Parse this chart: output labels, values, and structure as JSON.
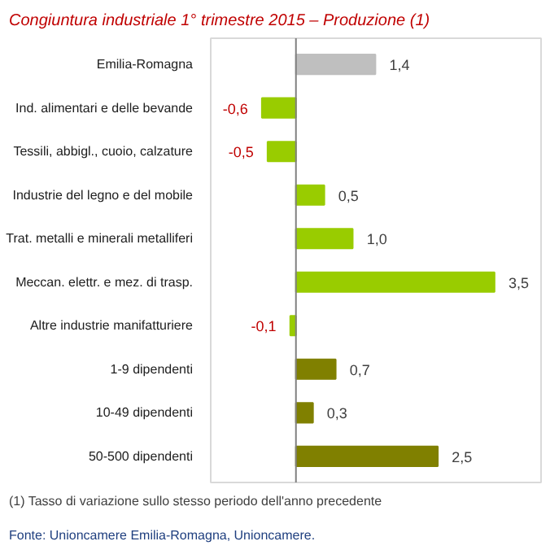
{
  "chart_data": {
    "type": "bar",
    "orientation": "horizontal",
    "title": "Congiuntura industriale 1° trimestre 2015 – Produzione (1)",
    "categories": [
      "Emilia-Romagna",
      "Ind. alimentari e delle bevande",
      "Tessili, abbigl., cuoio, calzature",
      "Industrie del legno e del mobile",
      "Trat. metalli e minerali metalliferi",
      "Meccan. elettr. e mez. di trasp.",
      "Altre industrie manifatturiere",
      "1-9 dipendenti",
      "10-49 dipendenti",
      "50-500 dipendenti"
    ],
    "values": [
      1.4,
      -0.6,
      -0.5,
      0.5,
      1.0,
      3.5,
      -0.1,
      0.7,
      0.3,
      2.5
    ],
    "colors": [
      "#bfbfbf",
      "#99cc00",
      "#99cc00",
      "#99cc00",
      "#99cc00",
      "#99cc00",
      "#99cc00",
      "#808000",
      "#808000",
      "#808000"
    ],
    "value_labels": [
      "1,4",
      "-0,6",
      "-0,5",
      "0,5",
      "1,0",
      "3,5",
      "-0,1",
      "0,7",
      "0,3",
      "2,5"
    ],
    "ref_lines": [
      {
        "axis": "x",
        "value": 0,
        "color": "#808080"
      }
    ],
    "annotations": [
      "(1) Tasso di variazione sullo stesso periodo dell'anno precedente",
      "Fonte: Unioncamere Emilia-Romagna, Unioncamere."
    ],
    "grid": false
  }
}
